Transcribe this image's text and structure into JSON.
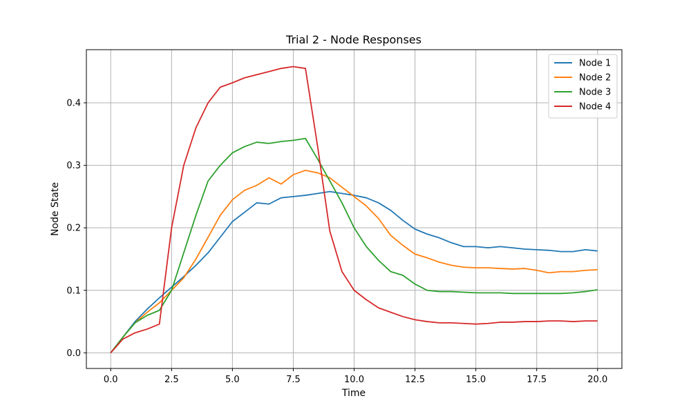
{
  "chart_data": {
    "type": "line",
    "title": "Trial 2 - Node Responses",
    "xlabel": "Time",
    "ylabel": "Node State",
    "xlim": [
      -1.0,
      21.0
    ],
    "ylim": [
      -0.025,
      0.485
    ],
    "xticks": [
      0.0,
      2.5,
      5.0,
      7.5,
      10.0,
      12.5,
      15.0,
      17.5,
      20.0
    ],
    "xtick_labels": [
      "0.0",
      "2.5",
      "5.0",
      "7.5",
      "10.0",
      "12.5",
      "15.0",
      "17.5",
      "20.0"
    ],
    "yticks": [
      0.0,
      0.1,
      0.2,
      0.3,
      0.4
    ],
    "ytick_labels": [
      "0.0",
      "0.1",
      "0.2",
      "0.3",
      "0.4"
    ],
    "grid": true,
    "legend_position": "top-right",
    "x": [
      0.0,
      0.5,
      1.0,
      1.5,
      2.0,
      2.5,
      3.0,
      3.5,
      4.0,
      4.5,
      5.0,
      5.5,
      6.0,
      6.5,
      7.0,
      7.5,
      8.0,
      8.5,
      9.0,
      9.5,
      10.0,
      10.5,
      11.0,
      11.5,
      12.0,
      12.5,
      13.0,
      13.5,
      14.0,
      14.5,
      15.0,
      15.5,
      16.0,
      16.5,
      17.0,
      17.5,
      18.0,
      18.5,
      19.0,
      19.5,
      20.0
    ],
    "series": [
      {
        "name": "Node 1",
        "color": "#1f77b4",
        "values": [
          0.0,
          0.025,
          0.05,
          0.07,
          0.088,
          0.105,
          0.122,
          0.14,
          0.16,
          0.185,
          0.21,
          0.225,
          0.24,
          0.238,
          0.248,
          0.25,
          0.252,
          0.255,
          0.258,
          0.255,
          0.252,
          0.248,
          0.24,
          0.228,
          0.212,
          0.198,
          0.19,
          0.184,
          0.176,
          0.17,
          0.17,
          0.168,
          0.17,
          0.168,
          0.166,
          0.165,
          0.164,
          0.162,
          0.162,
          0.165,
          0.163
        ]
      },
      {
        "name": "Node 2",
        "color": "#ff7f0e",
        "values": [
          0.0,
          0.025,
          0.048,
          0.065,
          0.08,
          0.1,
          0.12,
          0.15,
          0.185,
          0.22,
          0.245,
          0.26,
          0.268,
          0.28,
          0.27,
          0.285,
          0.292,
          0.288,
          0.28,
          0.265,
          0.25,
          0.235,
          0.215,
          0.188,
          0.172,
          0.158,
          0.152,
          0.145,
          0.14,
          0.137,
          0.136,
          0.136,
          0.135,
          0.134,
          0.135,
          0.132,
          0.128,
          0.13,
          0.13,
          0.132,
          0.133
        ]
      },
      {
        "name": "Node 3",
        "color": "#2ca02c",
        "values": [
          0.0,
          0.025,
          0.048,
          0.06,
          0.068,
          0.1,
          0.16,
          0.22,
          0.275,
          0.3,
          0.32,
          0.33,
          0.337,
          0.335,
          0.338,
          0.34,
          0.343,
          0.31,
          0.275,
          0.24,
          0.2,
          0.17,
          0.148,
          0.13,
          0.124,
          0.11,
          0.1,
          0.098,
          0.098,
          0.097,
          0.096,
          0.096,
          0.096,
          0.095,
          0.095,
          0.095,
          0.095,
          0.095,
          0.096,
          0.098,
          0.101
        ]
      },
      {
        "name": "Node 4",
        "color": "#d62728",
        "values": [
          0.0,
          0.022,
          0.032,
          0.038,
          0.046,
          0.2,
          0.3,
          0.36,
          0.4,
          0.425,
          0.432,
          0.44,
          0.445,
          0.45,
          0.455,
          0.458,
          0.455,
          0.33,
          0.195,
          0.13,
          0.1,
          0.085,
          0.072,
          0.065,
          0.058,
          0.053,
          0.05,
          0.048,
          0.048,
          0.047,
          0.046,
          0.047,
          0.049,
          0.049,
          0.05,
          0.05,
          0.051,
          0.051,
          0.05,
          0.051,
          0.051
        ]
      }
    ]
  }
}
